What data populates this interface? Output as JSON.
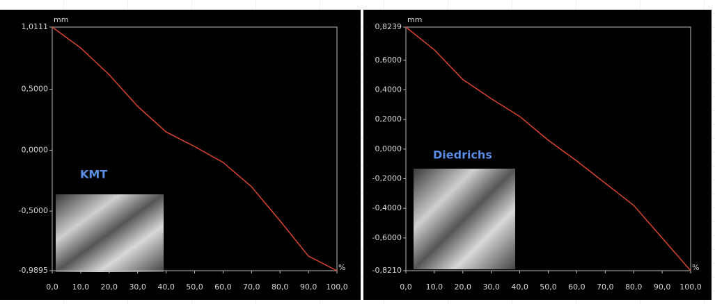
{
  "chart_data": [
    {
      "type": "line",
      "y_label": "mm",
      "x_label": "%",
      "annotation": "KMT",
      "color": "#d9442f",
      "x": [
        0,
        10,
        20,
        30,
        40,
        50,
        60,
        70,
        80,
        90,
        100
      ],
      "values": [
        1.0111,
        0.84,
        0.62,
        0.36,
        0.15,
        0.03,
        -0.1,
        -0.3,
        -0.58,
        -0.87,
        -0.9895
      ],
      "xlim": [
        0,
        100
      ],
      "ylim": [
        -0.9895,
        1.0111
      ],
      "xticks": [
        {
          "value": 0,
          "label": "0,0"
        },
        {
          "value": 10,
          "label": "10,0"
        },
        {
          "value": 20,
          "label": "20,0"
        },
        {
          "value": 30,
          "label": "30,0"
        },
        {
          "value": 40,
          "label": "40,0"
        },
        {
          "value": 50,
          "label": "50,0"
        },
        {
          "value": 60,
          "label": "60,0"
        },
        {
          "value": 70,
          "label": "70,0"
        },
        {
          "value": 80,
          "label": "80,0"
        },
        {
          "value": 90,
          "label": "90,0"
        },
        {
          "value": 100,
          "label": "100,0"
        }
      ],
      "yticks": [
        {
          "value": 1.0111,
          "label": "1,0111"
        },
        {
          "value": 0.5,
          "label": "0,5000"
        },
        {
          "value": 0,
          "label": "0,0000"
        },
        {
          "value": -0.5,
          "label": "-0,5000"
        },
        {
          "value": -0.9895,
          "label": "-0,9895"
        }
      ]
    },
    {
      "type": "line",
      "y_label": "mm",
      "x_label": "%",
      "annotation": "Diedrichs",
      "color": "#d9442f",
      "x": [
        0,
        10,
        20,
        30,
        40,
        50,
        60,
        70,
        80,
        90,
        100
      ],
      "values": [
        0.8239,
        0.67,
        0.47,
        0.34,
        0.22,
        0.06,
        -0.08,
        -0.23,
        -0.38,
        -0.6,
        -0.821
      ],
      "xlim": [
        0,
        100
      ],
      "ylim": [
        -0.821,
        0.8239
      ],
      "xticks": [
        {
          "value": 0,
          "label": "0,0"
        },
        {
          "value": 10,
          "label": "10,0"
        },
        {
          "value": 20,
          "label": "20,0"
        },
        {
          "value": 30,
          "label": "30,0"
        },
        {
          "value": 40,
          "label": "40,0"
        },
        {
          "value": 50,
          "label": "50,0"
        },
        {
          "value": 60,
          "label": "60,0"
        },
        {
          "value": 70,
          "label": "70,0"
        },
        {
          "value": 80,
          "label": "80,0"
        },
        {
          "value": 90,
          "label": "90,0"
        },
        {
          "value": 100,
          "label": "100,0"
        }
      ],
      "yticks": [
        {
          "value": 0.8239,
          "label": "0,8239"
        },
        {
          "value": 0.6,
          "label": "0,6000"
        },
        {
          "value": 0.4,
          "label": "0,4000"
        },
        {
          "value": 0.2,
          "label": "0,2000"
        },
        {
          "value": 0,
          "label": "0,0000"
        },
        {
          "value": -0.2,
          "label": "-0,2000"
        },
        {
          "value": -0.4,
          "label": "-0,4000"
        },
        {
          "value": -0.6,
          "label": "-0,6000"
        },
        {
          "value": -0.821,
          "label": "-0,8210"
        }
      ]
    }
  ]
}
